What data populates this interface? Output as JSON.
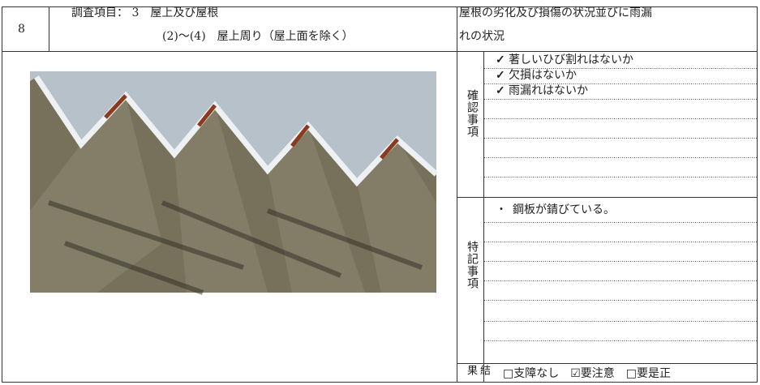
{
  "header": {
    "number": "8",
    "title": "調査項目： 3　屋上及び屋根",
    "subtitle": "(2)～(4)　屋上周り（屋上面を除く）",
    "topic_lines": [
      "屋根の劣化及び損傷の状況並びに雨漏",
      "れの状況"
    ]
  },
  "check": {
    "label": "確認事項",
    "items": [
      {
        "mark": "✓",
        "text": "著しいひび割れはないか"
      },
      {
        "mark": "✓",
        "text": "欠損はないか"
      },
      {
        "mark": "✓",
        "text": "雨漏れはないか"
      }
    ]
  },
  "notes": {
    "label": "特記事項",
    "items": [
      {
        "mark": "・",
        "text": "鋼板が錆びている。"
      }
    ]
  },
  "result": {
    "label": "結果",
    "options": [
      "□支障なし",
      "☑要注意",
      "□要是正"
    ]
  }
}
